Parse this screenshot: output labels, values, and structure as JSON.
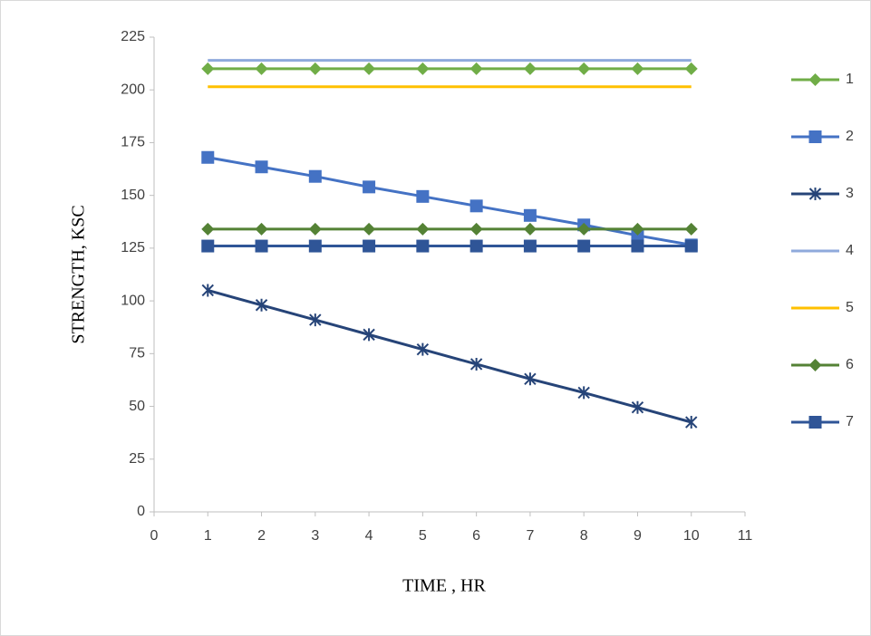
{
  "chart_data": {
    "type": "line",
    "x_label": "TIME , HR",
    "y_label": "STRENGTH, KSC",
    "x": [
      1,
      2,
      3,
      4,
      5,
      6,
      7,
      8,
      9,
      10
    ],
    "series": [
      {
        "name": "1",
        "color": "#70ad47",
        "marker": "diamond",
        "values": [
          210,
          210,
          210,
          210,
          210,
          210,
          210,
          210,
          210,
          210
        ]
      },
      {
        "name": "2",
        "color": "#4472c4",
        "marker": "square",
        "values": [
          168,
          163.5,
          159,
          154,
          149.5,
          145,
          140.5,
          136,
          131,
          126.5
        ]
      },
      {
        "name": "3",
        "color": "#264478",
        "marker": "star",
        "values": [
          105,
          98,
          91,
          84,
          77,
          70,
          63,
          56.5,
          49.5,
          42.5
        ]
      },
      {
        "name": "4",
        "color": "#8faadc",
        "marker": "none",
        "values": [
          214,
          214,
          214,
          214,
          214,
          214,
          214,
          214,
          214,
          214
        ]
      },
      {
        "name": "5",
        "color": "#ffc000",
        "marker": "none",
        "values": [
          201.5,
          201.5,
          201.5,
          201.5,
          201.5,
          201.5,
          201.5,
          201.5,
          201.5,
          201.5
        ]
      },
      {
        "name": "6",
        "color": "#548235",
        "marker": "diamond",
        "values": [
          134,
          134,
          134,
          134,
          134,
          134,
          134,
          134,
          134,
          134
        ]
      },
      {
        "name": "7",
        "color": "#2f5597",
        "marker": "square",
        "values": [
          126,
          126,
          126,
          126,
          126,
          126,
          126,
          126,
          126,
          126
        ]
      }
    ],
    "xlim": [
      0,
      11
    ],
    "xticks": [
      0,
      1,
      2,
      3,
      4,
      5,
      6,
      7,
      8,
      9,
      10,
      11
    ],
    "ylim": [
      0,
      225
    ],
    "yticks": [
      0,
      25,
      50,
      75,
      100,
      125,
      150,
      175,
      200,
      225
    ],
    "grid": false,
    "legend": "right"
  }
}
